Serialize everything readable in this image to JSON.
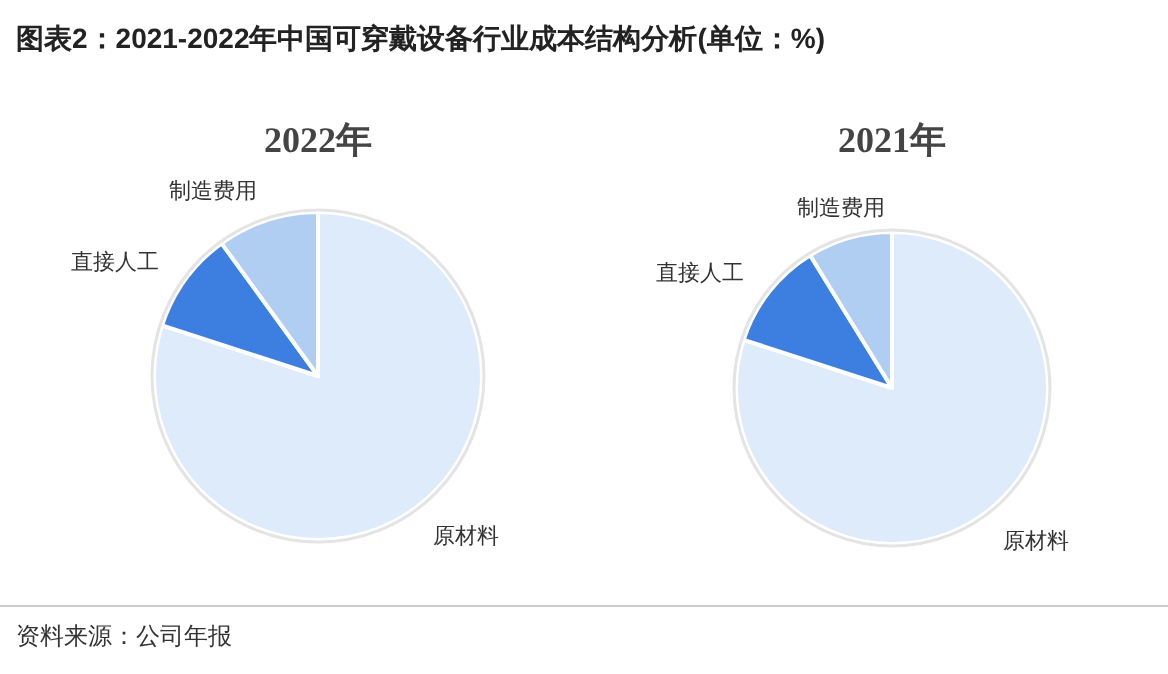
{
  "chart_data": [
    {
      "type": "pie",
      "title": "图表2：2021-2022年中国可穿戴设备行业成本结构分析(单位：%)",
      "subtitle": "2022年",
      "categories": [
        "原材料",
        "直接人工",
        "制造费用"
      ],
      "values": [
        80,
        10,
        10
      ],
      "colors": [
        "#deebfa",
        "#3d7fe0",
        "#b0cdf2"
      ],
      "annotations": [
        "资料来源：公司年报"
      ]
    },
    {
      "type": "pie",
      "subtitle": "2021年",
      "categories": [
        "原材料",
        "直接人工",
        "制造费用"
      ],
      "values": [
        80,
        11.2,
        8.8
      ],
      "colors": [
        "#deebfa",
        "#3d7fe0",
        "#b0cdf2"
      ]
    }
  ]
}
